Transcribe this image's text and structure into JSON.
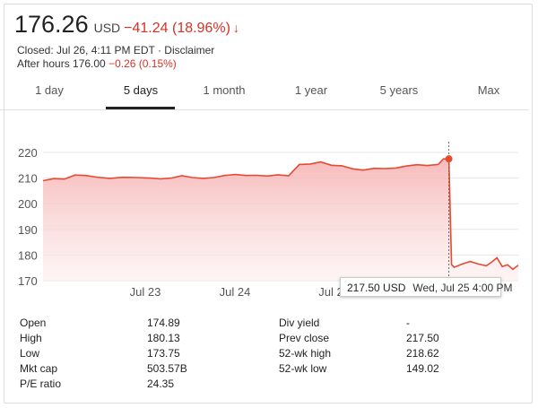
{
  "quote": {
    "price": "176.26",
    "currency": "USD",
    "change": "−41.24 (18.96%)",
    "arrow": "↓",
    "closed": "Closed: Jul 26, 4:11 PM EDT · Disclaimer",
    "after_hours_label": "After hours 176.00 ",
    "after_hours_change": "−0.26 (0.15%)"
  },
  "tabs": [
    "1 day",
    "5 days",
    "1 month",
    "1 year",
    "5 years",
    "Max"
  ],
  "active_tab": "5 days",
  "colors": {
    "line": "#e64a33",
    "fill_top": "#f8c0c0",
    "negative": "#d93025"
  },
  "chart_data": {
    "type": "area",
    "y_ticks": [
      170,
      180,
      190,
      200,
      210,
      220
    ],
    "ylim": [
      170,
      224
    ],
    "x_labels": [
      "Jul 23",
      "Jul 24",
      "Jul 2"
    ],
    "x": [
      0,
      4,
      8,
      12,
      16,
      20,
      25,
      30,
      35,
      40,
      44,
      48,
      52,
      56,
      60,
      64,
      68,
      72,
      76,
      80,
      84,
      88,
      92,
      96,
      100,
      104,
      108,
      112,
      116,
      120,
      124,
      128,
      132,
      136,
      140,
      144,
      148,
      150,
      152,
      153,
      154,
      157,
      160,
      163,
      166,
      168,
      170,
      172,
      174,
      176,
      178
    ],
    "values": [
      209.0,
      209.8,
      209.6,
      211.2,
      211.0,
      210.4,
      209.9,
      210.3,
      210.2,
      210.0,
      209.7,
      210.0,
      210.9,
      210.2,
      209.9,
      210.2,
      211.0,
      211.4,
      211.0,
      211.1,
      210.8,
      211.3,
      210.9,
      215.3,
      215.5,
      216.3,
      215.0,
      214.8,
      213.6,
      213.1,
      213.8,
      213.7,
      213.9,
      214.7,
      215.2,
      214.9,
      215.3,
      217.5,
      217.5,
      176.3,
      175.2,
      176.5,
      177.5,
      176.5,
      175.8,
      177.2,
      178.9,
      175.5,
      176.2,
      174.4,
      176.0
    ],
    "tooltip": {
      "price": "217.50 USD",
      "date": "Wed, Jul 25 4:00 PM"
    }
  },
  "stats": {
    "left": [
      {
        "label": "Open",
        "value": "174.89"
      },
      {
        "label": "High",
        "value": "180.13"
      },
      {
        "label": "Low",
        "value": "173.75"
      },
      {
        "label": "Mkt cap",
        "value": "503.57B"
      },
      {
        "label": "P/E ratio",
        "value": "24.35"
      }
    ],
    "right": [
      {
        "label": "Div yield",
        "value": "-"
      },
      {
        "label": "Prev close",
        "value": "217.50"
      },
      {
        "label": "52-wk high",
        "value": "218.62"
      },
      {
        "label": "52-wk low",
        "value": "149.02"
      }
    ]
  }
}
